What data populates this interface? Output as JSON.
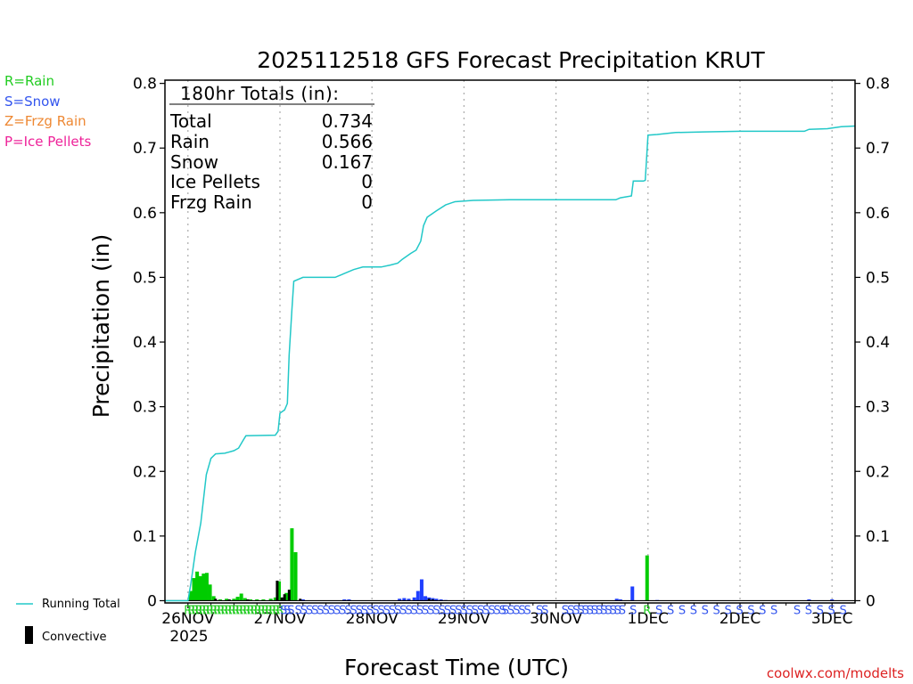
{
  "chart_data": {
    "type": "bar",
    "title": "2025112518 GFS Forecast Precipitation KRUT",
    "xlabel": "Forecast Time (UTC)",
    "ylabel": "Precipitation (in)",
    "ylim": [
      -0.0035,
      0.805
    ],
    "xlim": [
      -0.25,
      7.25
    ],
    "yticks": [
      0,
      0.1,
      0.2,
      0.3,
      0.4,
      0.5,
      0.6,
      0.7,
      0.8
    ],
    "ytick_labels": [
      "0",
      "0.1",
      "0.2",
      "0.3",
      "0.4",
      "0.5",
      "0.6",
      "0.7",
      "0.8"
    ],
    "xticks": [
      {
        "day": 0,
        "label": "26NOV"
      },
      {
        "day": 1,
        "label": "27NOV"
      },
      {
        "day": 2,
        "label": "28NOV"
      },
      {
        "day": 3,
        "label": "29NOV"
      },
      {
        "day": 4,
        "label": "30NOV"
      },
      {
        "day": 5,
        "label": "1DEC"
      },
      {
        "day": 6,
        "label": "2DEC"
      },
      {
        "day": 7,
        "label": "3DEC"
      }
    ],
    "year_label": "2025",
    "totals": {
      "header": "180hr Totals (in):",
      "rows": [
        {
          "label": "Total",
          "value": "0.734"
        },
        {
          "label": "Rain",
          "value": "0.566"
        },
        {
          "label": "Snow",
          "value": "0.167"
        },
        {
          "label": "Ice Pellets",
          "value": "0"
        },
        {
          "label": "Frzg Rain",
          "value": "0"
        }
      ]
    },
    "type_legend": [
      {
        "text": "R=Rain",
        "color": "#22cc22"
      },
      {
        "text": "S=Snow",
        "color": "#3355ee"
      },
      {
        "text": "Z=Frzg Rain",
        "color": "#ee8833"
      },
      {
        "text": "P=Ice Pellets",
        "color": "#ee2299"
      }
    ],
    "bottom_legend": {
      "line": "Running Total",
      "bar": "Convective"
    },
    "colors": {
      "rain": "#00cc00",
      "snow": "#1f3fff",
      "convective": "#000000",
      "running": "#22c8c8",
      "frzg": "#ee8833",
      "pellets": "#ee2299",
      "grid": "#aaaaaa"
    },
    "running_total": [
      [
        -0.25,
        0
      ],
      [
        0.0,
        0
      ],
      [
        0.03,
        0.025
      ],
      [
        0.08,
        0.075
      ],
      [
        0.14,
        0.12
      ],
      [
        0.2,
        0.195
      ],
      [
        0.25,
        0.22
      ],
      [
        0.3,
        0.227
      ],
      [
        0.4,
        0.228
      ],
      [
        0.5,
        0.232
      ],
      [
        0.55,
        0.236
      ],
      [
        0.6,
        0.248
      ],
      [
        0.63,
        0.255
      ],
      [
        0.95,
        0.256
      ],
      [
        0.98,
        0.262
      ],
      [
        1.0,
        0.29
      ],
      [
        1.05,
        0.295
      ],
      [
        1.08,
        0.305
      ],
      [
        1.1,
        0.38
      ],
      [
        1.13,
        0.45
      ],
      [
        1.15,
        0.494
      ],
      [
        1.25,
        0.5
      ],
      [
        1.6,
        0.5
      ],
      [
        1.7,
        0.506
      ],
      [
        1.8,
        0.512
      ],
      [
        1.9,
        0.516
      ],
      [
        2.1,
        0.516
      ],
      [
        2.2,
        0.519
      ],
      [
        2.28,
        0.522
      ],
      [
        2.33,
        0.528
      ],
      [
        2.42,
        0.537
      ],
      [
        2.48,
        0.542
      ],
      [
        2.53,
        0.556
      ],
      [
        2.56,
        0.58
      ],
      [
        2.6,
        0.593
      ],
      [
        2.7,
        0.603
      ],
      [
        2.8,
        0.612
      ],
      [
        2.9,
        0.617
      ],
      [
        3.1,
        0.619
      ],
      [
        3.5,
        0.62
      ],
      [
        4.3,
        0.62
      ],
      [
        4.65,
        0.62
      ],
      [
        4.7,
        0.623
      ],
      [
        4.82,
        0.626
      ],
      [
        4.84,
        0.649
      ],
      [
        4.95,
        0.649
      ],
      [
        4.97,
        0.65
      ],
      [
        5.0,
        0.72
      ],
      [
        5.1,
        0.721
      ],
      [
        5.3,
        0.724
      ],
      [
        5.6,
        0.725
      ],
      [
        6.0,
        0.726
      ],
      [
        6.5,
        0.726
      ],
      [
        6.7,
        0.726
      ],
      [
        6.75,
        0.729
      ],
      [
        6.95,
        0.73
      ],
      [
        7.0,
        0.731
      ],
      [
        7.1,
        0.733
      ],
      [
        7.25,
        0.734
      ]
    ],
    "bars": [
      {
        "x": 0.03,
        "v": 0.015,
        "t": "rain"
      },
      {
        "x": 0.065,
        "v": 0.035,
        "t": "rain"
      },
      {
        "x": 0.1,
        "v": 0.045,
        "t": "rain"
      },
      {
        "x": 0.135,
        "v": 0.038,
        "t": "rain"
      },
      {
        "x": 0.17,
        "v": 0.042,
        "t": "rain"
      },
      {
        "x": 0.205,
        "v": 0.043,
        "t": "rain"
      },
      {
        "x": 0.24,
        "v": 0.025,
        "t": "rain"
      },
      {
        "x": 0.28,
        "v": 0.007,
        "t": "rain"
      },
      {
        "x": 0.35,
        "v": 0.002,
        "t": "rain"
      },
      {
        "x": 0.42,
        "v": 0.003,
        "t": "rain"
      },
      {
        "x": 0.5,
        "v": 0.003,
        "t": "rain"
      },
      {
        "x": 0.54,
        "v": 0.006,
        "t": "rain"
      },
      {
        "x": 0.58,
        "v": 0.011,
        "t": "rain"
      },
      {
        "x": 0.62,
        "v": 0.004,
        "t": "rain"
      },
      {
        "x": 0.68,
        "v": 0.002,
        "t": "rain"
      },
      {
        "x": 0.75,
        "v": 0.002,
        "t": "rain"
      },
      {
        "x": 0.82,
        "v": 0.002,
        "t": "rain"
      },
      {
        "x": 0.9,
        "v": 0.003,
        "t": "rain"
      },
      {
        "x": 0.95,
        "v": 0.005,
        "t": "rain"
      },
      {
        "x": 0.99,
        "v": 0.03,
        "t": "rain"
      },
      {
        "x": 1.04,
        "v": 0.005,
        "t": "rain"
      },
      {
        "x": 1.07,
        "v": 0.012,
        "t": "rain"
      },
      {
        "x": 1.13,
        "v": 0.112,
        "t": "rain"
      },
      {
        "x": 1.17,
        "v": 0.075,
        "t": "rain"
      },
      {
        "x": 1.25,
        "v": 0.002,
        "t": "snow"
      },
      {
        "x": 1.7,
        "v": 0.002,
        "t": "snow"
      },
      {
        "x": 1.75,
        "v": 0.002,
        "t": "snow"
      },
      {
        "x": 2.3,
        "v": 0.003,
        "t": "snow"
      },
      {
        "x": 2.35,
        "v": 0.004,
        "t": "snow"
      },
      {
        "x": 2.4,
        "v": 0.003,
        "t": "snow"
      },
      {
        "x": 2.46,
        "v": 0.005,
        "t": "snow"
      },
      {
        "x": 2.5,
        "v": 0.015,
        "t": "snow"
      },
      {
        "x": 2.54,
        "v": 0.033,
        "t": "snow"
      },
      {
        "x": 2.58,
        "v": 0.007,
        "t": "snow"
      },
      {
        "x": 2.62,
        "v": 0.005,
        "t": "snow"
      },
      {
        "x": 2.66,
        "v": 0.004,
        "t": "snow"
      },
      {
        "x": 2.7,
        "v": 0.003,
        "t": "snow"
      },
      {
        "x": 2.75,
        "v": 0.002,
        "t": "snow"
      },
      {
        "x": 2.8,
        "v": 0.001,
        "t": "snow"
      },
      {
        "x": 4.66,
        "v": 0.003,
        "t": "snow"
      },
      {
        "x": 4.7,
        "v": 0.002,
        "t": "snow"
      },
      {
        "x": 4.83,
        "v": 0.022,
        "t": "snow"
      },
      {
        "x": 4.99,
        "v": 0.07,
        "t": "rain"
      },
      {
        "x": 5.1,
        "v": 0.001,
        "t": "snow"
      },
      {
        "x": 6.75,
        "v": 0.002,
        "t": "snow"
      },
      {
        "x": 7.0,
        "v": 0.002,
        "t": "snow"
      }
    ],
    "convective": [
      {
        "x": 0.3,
        "v": 0.003
      },
      {
        "x": 0.45,
        "v": 0.002
      },
      {
        "x": 0.65,
        "v": 0.002
      },
      {
        "x": 0.97,
        "v": 0.031
      },
      {
        "x": 1.02,
        "v": 0.005
      },
      {
        "x": 1.05,
        "v": 0.01
      },
      {
        "x": 1.1,
        "v": 0.017
      },
      {
        "x": 1.22,
        "v": 0.003
      },
      {
        "x": 2.62,
        "v": 0.003
      },
      {
        "x": 2.66,
        "v": 0.002
      }
    ],
    "type_markers": [
      {
        "from": 0.0,
        "to": 1.02,
        "step": 0.04,
        "t": "R"
      },
      {
        "from": 1.04,
        "to": 1.12,
        "step": 0.04,
        "t": "S"
      },
      {
        "from": 1.2,
        "to": 3.42,
        "step": 0.06,
        "t": "S"
      },
      {
        "from": 3.45,
        "to": 3.72,
        "step": 0.06,
        "t": "S"
      },
      {
        "from": 3.82,
        "to": 3.9,
        "step": 0.06,
        "t": "S"
      },
      {
        "from": 4.1,
        "to": 4.16,
        "step": 0.06,
        "t": "S"
      },
      {
        "from": 4.22,
        "to": 4.74,
        "step": 0.05,
        "t": "S"
      },
      {
        "from": 4.84,
        "to": 4.84,
        "step": 1,
        "t": "S"
      },
      {
        "from": 4.99,
        "to": 4.99,
        "step": 1,
        "t": "R"
      },
      {
        "from": 5.12,
        "to": 6.4,
        "step": 0.125,
        "t": "S"
      },
      {
        "from": 6.62,
        "to": 7.22,
        "step": 0.125,
        "t": "S"
      }
    ]
  },
  "watermark": "coolwx.com/modelts"
}
